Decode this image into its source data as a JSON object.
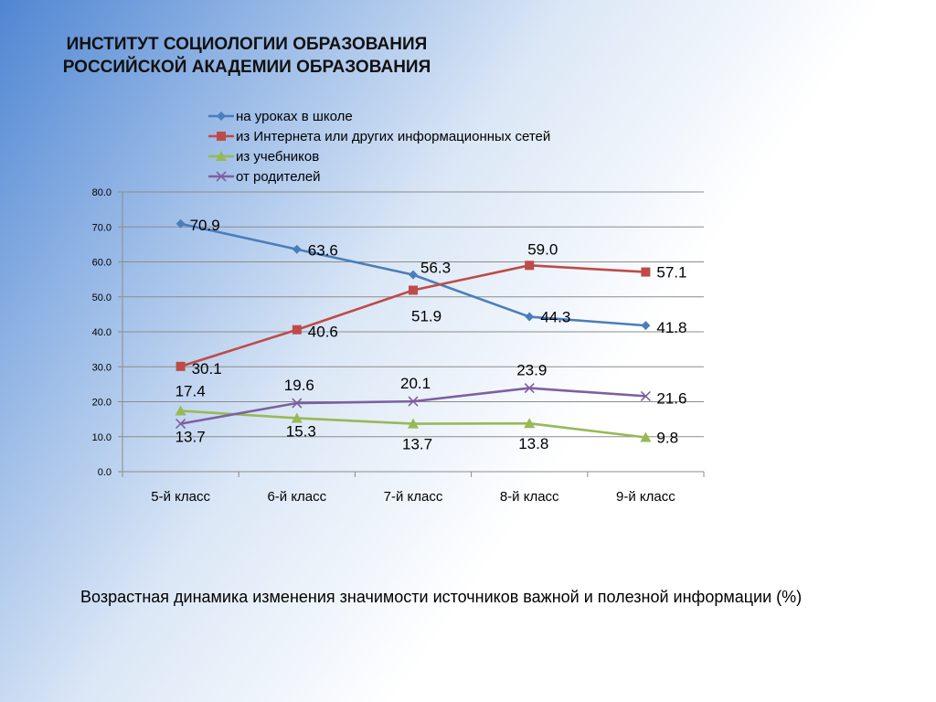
{
  "header": {
    "line1": "ИНСТИТУТ СОЦИОЛОГИИ ОБРАЗОВАНИЯ",
    "line2": "РОССИЙСКОЙ АКАДЕМИИ ОБРАЗОВАНИЯ"
  },
  "caption": "Возрастная динамика изменения значимости источников важной и полезной информации (%)",
  "chart_data": {
    "type": "line",
    "title": "",
    "xlabel": "",
    "ylabel": "",
    "categories": [
      "5-й класс",
      "6-й класс",
      "7-й класс",
      "8-й класс",
      "9-й класс"
    ],
    "ylim": [
      0,
      80
    ],
    "y_ticks": [
      "0.0",
      "10.0",
      "20.0",
      "30.0",
      "40.0",
      "50.0",
      "60.0",
      "70.0",
      "80.0"
    ],
    "grid": true,
    "legend_position": "top",
    "series": [
      {
        "name": "на уроках в школе",
        "color": "#4a7ebb",
        "marker": "diamond",
        "values": [
          70.9,
          63.6,
          56.3,
          44.3,
          41.8
        ],
        "labels": [
          "70.9",
          "63.6",
          "56.3",
          "44.3",
          "41.8"
        ]
      },
      {
        "name": "из Интернета или других информационных сетей",
        "color": "#be4b48",
        "marker": "square",
        "values": [
          30.1,
          40.6,
          51.9,
          59.0,
          57.1
        ],
        "labels": [
          "30.1",
          "40.6",
          "51.9",
          "59.0",
          "57.1"
        ]
      },
      {
        "name": "из учебников",
        "color": "#98b954",
        "marker": "triangle",
        "values": [
          17.4,
          15.3,
          13.7,
          13.8,
          9.8
        ],
        "labels": [
          "17.4",
          "15.3",
          "13.7",
          "13.8",
          "9.8"
        ]
      },
      {
        "name": "от  родителей",
        "color": "#7d60a0",
        "marker": "x",
        "values": [
          13.7,
          19.6,
          20.1,
          23.9,
          21.6
        ],
        "labels": [
          "13.7",
          "19.6",
          "20.1",
          "23.9",
          "21.6"
        ]
      }
    ]
  }
}
